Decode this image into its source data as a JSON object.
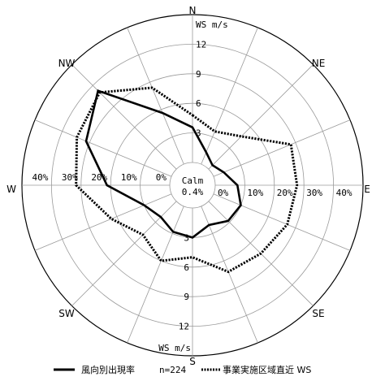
{
  "chart_data": {
    "type": "radar",
    "directions": [
      "N",
      "NNE",
      "NE",
      "ENE",
      "E",
      "ESE",
      "SE",
      "SSE",
      "S",
      "SSW",
      "SW",
      "WSW",
      "W",
      "WNW",
      "NW",
      "NNW"
    ],
    "compass_labels": [
      "N",
      "NE",
      "E",
      "SE",
      "S",
      "SW",
      "W",
      "NW"
    ],
    "frequency_ticks": [
      "0%",
      "10%",
      "20%",
      "30%",
      "40%"
    ],
    "ws_ticks": [
      "3",
      "6",
      "9",
      "12"
    ],
    "ws_unit_label": "WS m/s",
    "calm_label": "Calm",
    "calm_value": "0.4%",
    "n_label": "n=224",
    "freq_max": 40,
    "ws_max": 15,
    "series": [
      {
        "name": "風向別出現率",
        "axis": "frequency",
        "style": "solid",
        "values": [
          9.5,
          3.5,
          1.5,
          3.0,
          6.0,
          8.0,
          7.5,
          5.5,
          8.0,
          7.5,
          6.0,
          8.0,
          17.0,
          25.0,
          30.0,
          15.0
        ]
      },
      {
        "name": "事業実施区域直近 WS",
        "axis": "ws",
        "style": "dotted",
        "values": [
          4.8,
          3.6,
          4.7,
          8.5,
          8.3,
          8.1,
          7.5,
          7.2,
          5.0,
          6.0,
          4.8,
          6.6,
          9.5,
          10.4,
          11.0,
          8.4
        ]
      }
    ],
    "legend": [
      {
        "label": "風向別出現率",
        "style": "solid"
      },
      {
        "label": "n=224",
        "style": "none"
      },
      {
        "label": "事業実施区域直近 WS",
        "style": "dotted"
      }
    ]
  }
}
